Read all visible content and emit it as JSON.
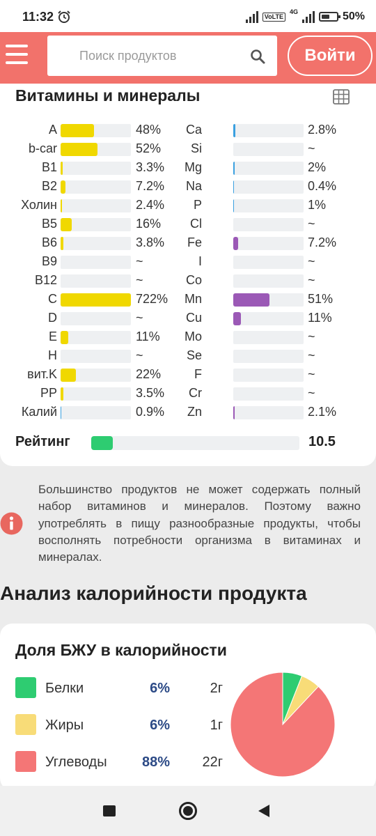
{
  "status_bar": {
    "time": "11:32",
    "battery": "50%",
    "network": "4G",
    "volte": "VoLTE"
  },
  "header": {
    "search_placeholder": "Поиск продуктов",
    "login_label": "Войти"
  },
  "vitamins": {
    "title": "Витамины и минералы",
    "left": [
      {
        "label": "A",
        "value": "48%",
        "fill": 48,
        "color": "#f0d800"
      },
      {
        "label": "b-car",
        "value": "52%",
        "fill": 52,
        "color": "#f0d800"
      },
      {
        "label": "B1",
        "value": "3.3%",
        "fill": 3.3,
        "color": "#f0d800"
      },
      {
        "label": "B2",
        "value": "7.2%",
        "fill": 7.2,
        "color": "#f0d800"
      },
      {
        "label": "Холин",
        "value": "2.4%",
        "fill": 2.4,
        "color": "#f0d800"
      },
      {
        "label": "B5",
        "value": "16%",
        "fill": 16,
        "color": "#f0d800"
      },
      {
        "label": "B6",
        "value": "3.8%",
        "fill": 3.8,
        "color": "#f0d800"
      },
      {
        "label": "B9",
        "value": "~",
        "fill": 0,
        "color": "#f0d800"
      },
      {
        "label": "B12",
        "value": "~",
        "fill": 0,
        "color": "#f0d800"
      },
      {
        "label": "C",
        "value": "722%",
        "fill": 100,
        "color": "#f0d800"
      },
      {
        "label": "D",
        "value": "~",
        "fill": 0,
        "color": "#f0d800"
      },
      {
        "label": "E",
        "value": "11%",
        "fill": 11,
        "color": "#f0d800"
      },
      {
        "label": "H",
        "value": "~",
        "fill": 0,
        "color": "#f0d800"
      },
      {
        "label": "вит.K",
        "value": "22%",
        "fill": 22,
        "color": "#f0d800"
      },
      {
        "label": "PP",
        "value": "3.5%",
        "fill": 3.5,
        "color": "#f0d800"
      },
      {
        "label": "Калий",
        "value": "0.9%",
        "fill": 0.9,
        "color": "#3aa0e0"
      }
    ],
    "right": [
      {
        "label": "Ca",
        "value": "2.8%",
        "fill": 2.8,
        "color": "#3aa0e0"
      },
      {
        "label": "Si",
        "value": "~",
        "fill": 0,
        "color": "#3aa0e0"
      },
      {
        "label": "Mg",
        "value": "2%",
        "fill": 2,
        "color": "#3aa0e0"
      },
      {
        "label": "Na",
        "value": "0.4%",
        "fill": 0.4,
        "color": "#3aa0e0"
      },
      {
        "label": "P",
        "value": "1%",
        "fill": 1,
        "color": "#3aa0e0"
      },
      {
        "label": "Cl",
        "value": "~",
        "fill": 0,
        "color": "#3aa0e0"
      },
      {
        "label": "Fe",
        "value": "7.2%",
        "fill": 7.2,
        "color": "#9b59b6"
      },
      {
        "label": "I",
        "value": "~",
        "fill": 0,
        "color": "#9b59b6"
      },
      {
        "label": "Co",
        "value": "~",
        "fill": 0,
        "color": "#9b59b6"
      },
      {
        "label": "Mn",
        "value": "51%",
        "fill": 51,
        "color": "#9b59b6"
      },
      {
        "label": "Cu",
        "value": "11%",
        "fill": 11,
        "color": "#9b59b6"
      },
      {
        "label": "Mo",
        "value": "~",
        "fill": 0,
        "color": "#9b59b6"
      },
      {
        "label": "Se",
        "value": "~",
        "fill": 0,
        "color": "#9b59b6"
      },
      {
        "label": "F",
        "value": "~",
        "fill": 0,
        "color": "#9b59b6"
      },
      {
        "label": "Cr",
        "value": "~",
        "fill": 0,
        "color": "#9b59b6"
      },
      {
        "label": "Zn",
        "value": "2.1%",
        "fill": 2.1,
        "color": "#9b59b6"
      }
    ],
    "rating": {
      "label": "Рейтинг",
      "value": "10.5",
      "fill": 10.5,
      "color": "#2ecc71"
    }
  },
  "info": {
    "text": "Большинство продуктов не может содержать полный набор витаминов и минералов. Поэтому важно употреблять в пищу разнообразные продукты, чтобы восполнять потребности организма в витаминах и минералах."
  },
  "analysis": {
    "title": "Анализ калорийности продукта"
  },
  "bju": {
    "title": "Доля БЖУ в калорийности",
    "items": [
      {
        "name": "Белки",
        "percent": "6%",
        "grams": "2г",
        "share": 6,
        "color": "#2ecc71"
      },
      {
        "name": "Жиры",
        "percent": "6%",
        "grams": "1г",
        "share": 6,
        "color": "#f8dc78"
      },
      {
        "name": "Углеводы",
        "percent": "88%",
        "grams": "22г",
        "share": 88,
        "color": "#f47676"
      }
    ]
  }
}
